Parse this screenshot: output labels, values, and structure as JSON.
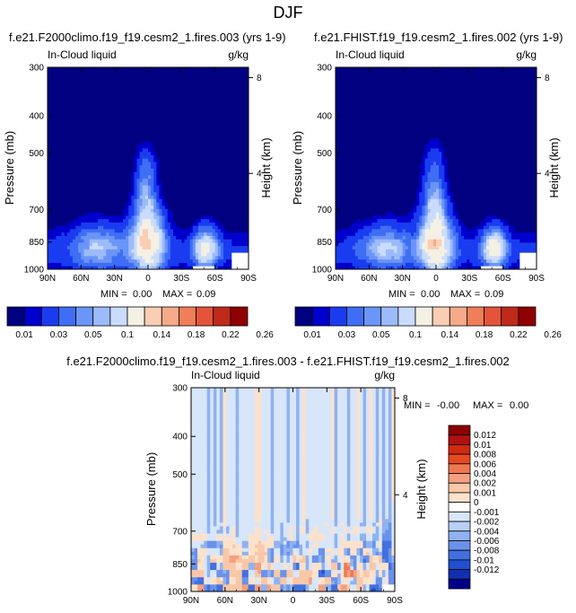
{
  "figure": {
    "title": "DJF"
  },
  "colors": {
    "abs_scale": [
      "#000080",
      "#0000cd",
      "#1a3cf0",
      "#3f6ef5",
      "#6b95f7",
      "#9cbbfa",
      "#c9dcfd",
      "#f5f0e4",
      "#f8cfb4",
      "#f5aa8a",
      "#f07e5a",
      "#e4543a",
      "#c02a18",
      "#900000"
    ],
    "diff_scale": [
      "#8b0000",
      "#b01010",
      "#d02a10",
      "#e84a20",
      "#f07850",
      "#f4a080",
      "#f8c8a8",
      "#fce2cc",
      "#ffffff",
      "#d8e6fa",
      "#b8d0f6",
      "#90b2f0",
      "#6a92ea",
      "#4270e0",
      "#2050d0",
      "#1030b0",
      "#000088"
    ],
    "colors_note": "diff_scale ordered top (positive) to bottom (negative)"
  },
  "chart_data": [
    {
      "type": "heatmap",
      "title": "f.e21.F2000climo.f19_f19.cesm2_1.fires.003 (yrs 1-9)",
      "left_label": "In-Cloud liquid",
      "right_label": "g/kg",
      "xlabel": "",
      "ylabel": "Pressure (mb)",
      "y2label": "Height (km)",
      "x_ticks": [
        "90N",
        "60N",
        "30N",
        "0",
        "30S",
        "60S",
        "90S"
      ],
      "y_ticks": [
        "300",
        "400",
        "500",
        "700",
        "850",
        "1000"
      ],
      "y_range_mb": [
        1000,
        300
      ],
      "y2_ticks": [
        "8",
        "4"
      ],
      "stats": {
        "min_label": "MIN =",
        "min": "0.00",
        "max_label": "MAX =",
        "max": "0.09"
      },
      "colorbar_labels": [
        "0.01",
        "0.03",
        "0.05",
        "0.1",
        "0.14",
        "0.18",
        "0.22",
        "0.26"
      ],
      "colorbar_levels": [
        0.005,
        0.01,
        0.02,
        0.03,
        0.04,
        0.05,
        0.07,
        0.1,
        0.12,
        0.14,
        0.16,
        0.18,
        0.2,
        0.22,
        0.24,
        0.26
      ],
      "peak_value": 0.09,
      "peak_lat": 0,
      "peak_p": 850
    },
    {
      "type": "heatmap",
      "title": "f.e21.FHIST.f19_f19.cesm2_1.fires.002 (yrs 1-9)",
      "left_label": "In-Cloud liquid",
      "right_label": "g/kg",
      "xlabel": "",
      "ylabel": "Pressure (mb)",
      "y2label": "Height (km)",
      "x_ticks": [
        "90N",
        "60N",
        "30N",
        "0",
        "30S",
        "60S",
        "90S"
      ],
      "y_ticks": [
        "300",
        "400",
        "500",
        "700",
        "850",
        "1000"
      ],
      "y_range_mb": [
        1000,
        300
      ],
      "y2_ticks": [
        "8",
        "4"
      ],
      "stats": {
        "min_label": "MIN =",
        "min": "0.00",
        "max_label": "MAX =",
        "max": "0.09"
      },
      "colorbar_labels": [
        "0.01",
        "0.03",
        "0.05",
        "0.1",
        "0.14",
        "0.18",
        "0.22",
        "0.26"
      ],
      "colorbar_levels": [
        0.005,
        0.01,
        0.02,
        0.03,
        0.04,
        0.05,
        0.07,
        0.1,
        0.12,
        0.14,
        0.16,
        0.18,
        0.2,
        0.22,
        0.24,
        0.26
      ],
      "peak_value": 0.09,
      "peak_lat": 0,
      "peak_p": 850
    },
    {
      "type": "heatmap",
      "title": "f.e21.F2000climo.f19_f19.cesm2_1.fires.003 - f.e21.FHIST.f19_f19.cesm2_1.fires.002",
      "left_label": "In-Cloud liquid",
      "right_label": "g/kg",
      "xlabel": "",
      "ylabel": "Pressure (mb)",
      "y2label": "Height (km)",
      "x_ticks": [
        "90N",
        "60N",
        "30N",
        "0",
        "30S",
        "60S",
        "90S"
      ],
      "y_ticks": [
        "300",
        "400",
        "500",
        "700",
        "850",
        "1000"
      ],
      "y_range_mb": [
        1000,
        300
      ],
      "y2_ticks": [
        "8",
        "4"
      ],
      "stats": {
        "min_label": "MIN =",
        "min": "-0.00",
        "max_label": "MAX =",
        "max": "0.00"
      },
      "colorbar_labels": [
        "0.012",
        "0.01",
        "0.008",
        "0.006",
        "0.004",
        "0.002",
        "0.001",
        "0",
        "-0.001",
        "-0.002",
        "-0.004",
        "-0.006",
        "-0.008",
        "-0.01",
        "-0.012"
      ],
      "value_range": [
        -0.012,
        0.012
      ]
    }
  ]
}
